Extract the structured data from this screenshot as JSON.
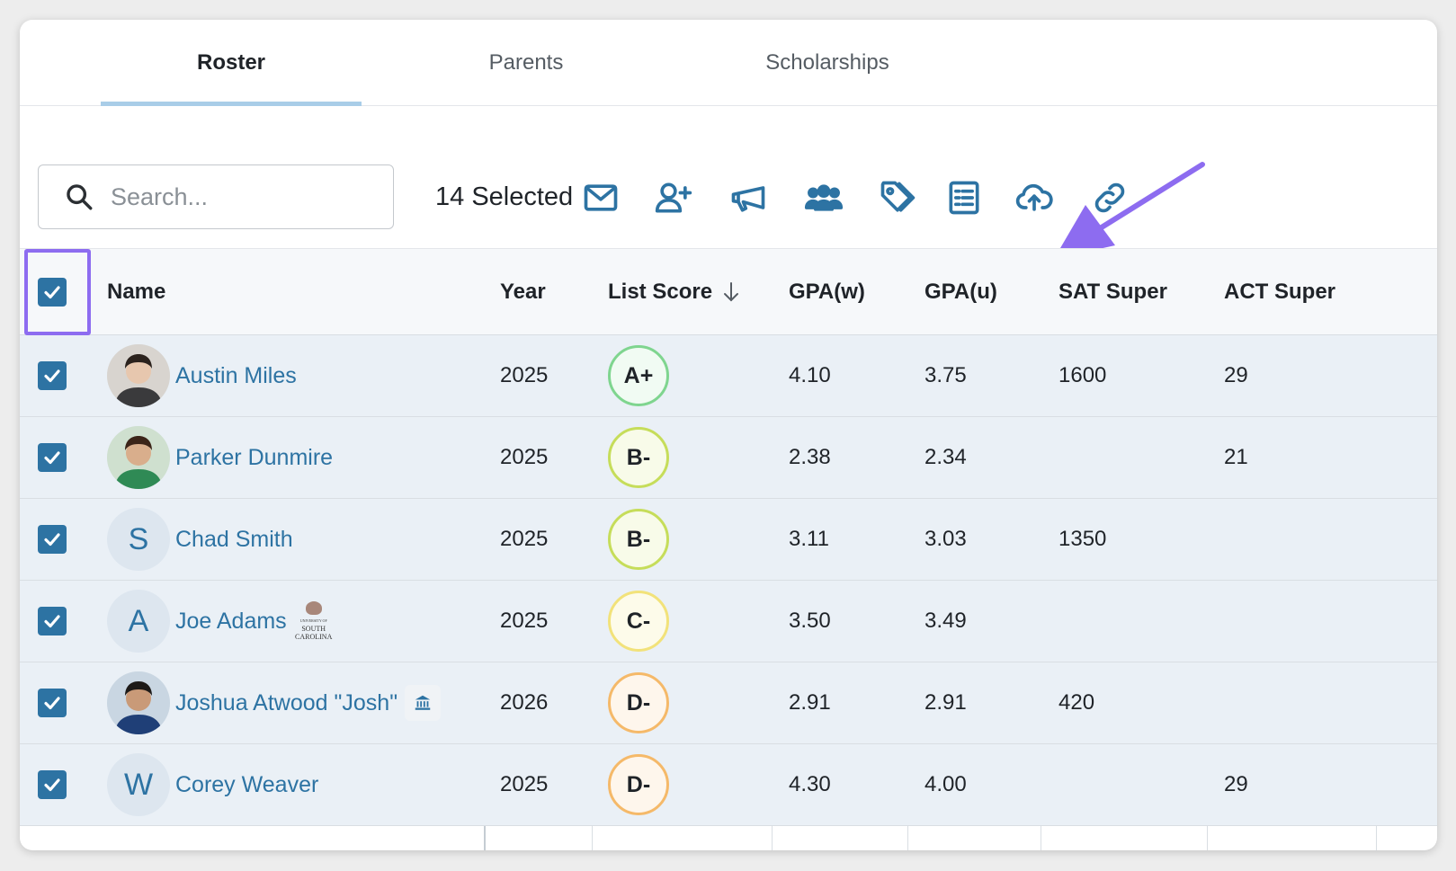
{
  "tabs": [
    {
      "label": "Roster",
      "active": true
    },
    {
      "label": "Parents",
      "active": false
    },
    {
      "label": "Scholarships",
      "active": false
    }
  ],
  "toolbar": {
    "search_placeholder": "Search...",
    "selected_count": "14 Selected",
    "icons": [
      "mail-icon",
      "add-user-icon",
      "megaphone-icon",
      "group-icon",
      "tag-icon",
      "checklist-icon",
      "cloud-upload-icon",
      "link-icon"
    ]
  },
  "colors": {
    "accent": "#2d73a3",
    "highlight_box": "#8d6cf0",
    "arrow": "#8d6cf0",
    "tab_underline": "#a9cde8"
  },
  "table": {
    "columns": [
      "Name",
      "Year",
      "List Score",
      "GPA(w)",
      "GPA(u)",
      "SAT Super",
      "ACT Super"
    ],
    "rows": [
      {
        "name": "Austin Miles",
        "avatar": "photo",
        "initial": "",
        "year": "2025",
        "score": "A+",
        "score_color": "#7fd58f",
        "score_bg": "#f1fbf3",
        "gpa_w": "4.10",
        "gpa_u": "3.75",
        "sat": "1600",
        "act": "29",
        "badge": ""
      },
      {
        "name": "Parker Dunmire",
        "avatar": "photo",
        "initial": "",
        "year": "2025",
        "score": "B-",
        "score_color": "#c6dd5a",
        "score_bg": "#f8fbe9",
        "gpa_w": "2.38",
        "gpa_u": "2.34",
        "sat": "",
        "act": "21",
        "badge": ""
      },
      {
        "name": "Chad Smith",
        "avatar": "initial",
        "initial": "S",
        "year": "2025",
        "score": "B-",
        "score_color": "#c6dd5a",
        "score_bg": "#f8fbe9",
        "gpa_w": "3.11",
        "gpa_u": "3.03",
        "sat": "1350",
        "act": "",
        "badge": ""
      },
      {
        "name": "Joe Adams",
        "avatar": "initial",
        "initial": "A",
        "year": "2025",
        "score": "C-",
        "score_color": "#f2e27a",
        "score_bg": "#fdfbea",
        "gpa_w": "3.50",
        "gpa_u": "3.49",
        "sat": "",
        "act": "",
        "badge": "usc"
      },
      {
        "name": "Joshua Atwood \"Josh\"",
        "avatar": "photo",
        "initial": "",
        "year": "2026",
        "score": "D-",
        "score_color": "#f5b969",
        "score_bg": "#fef6ec",
        "gpa_w": "2.91",
        "gpa_u": "2.91",
        "sat": "420",
        "act": "",
        "badge": "institution"
      },
      {
        "name": "Corey Weaver",
        "avatar": "initial",
        "initial": "W",
        "year": "2025",
        "score": "D-",
        "score_color": "#f5b969",
        "score_bg": "#fef6ec",
        "gpa_w": "4.30",
        "gpa_u": "4.00",
        "sat": "",
        "act": "29",
        "badge": ""
      }
    ]
  },
  "usc_badge": {
    "line1": "UNIVERSITY OF",
    "line2": "SOUTH",
    "line3": "CAROLINA"
  },
  "institution_badge_icon": "institution-icon"
}
